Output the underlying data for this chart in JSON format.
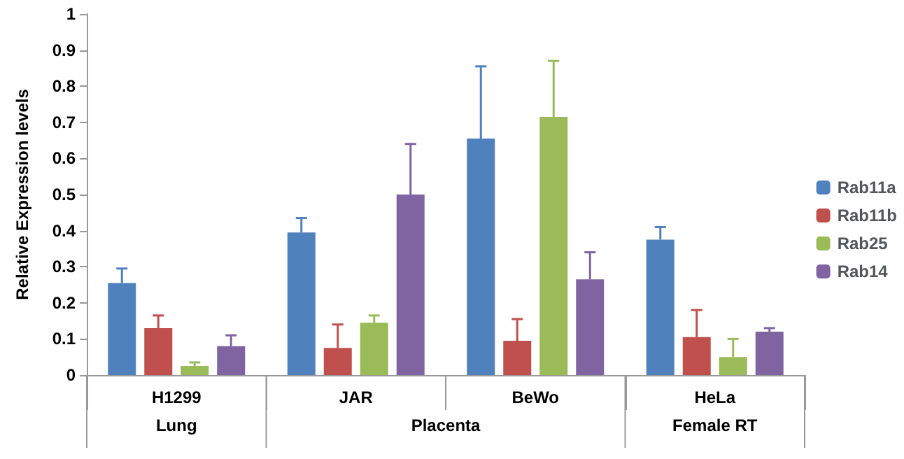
{
  "chart_data": {
    "type": "bar",
    "ylabel": "Relative Expression levels",
    "categories": [
      "H1299",
      "JAR",
      "BeWo",
      "HeLa"
    ],
    "series": [
      {
        "name": "Rab11a",
        "color": "#4f81bd",
        "values": [
          0.255,
          0.395,
          0.655,
          0.375
        ],
        "errors": [
          [
            0.255,
            0.295
          ],
          [
            0.395,
            0.435
          ],
          [
            0.655,
            0.855
          ],
          [
            0.375,
            0.41
          ]
        ]
      },
      {
        "name": "Rab11b",
        "color": "#c0504d",
        "values": [
          0.13,
          0.075,
          0.095,
          0.105
        ],
        "errors": [
          [
            0.13,
            0.165
          ],
          [
            0.075,
            0.14
          ],
          [
            0.095,
            0.155
          ],
          [
            0.105,
            0.18
          ]
        ]
      },
      {
        "name": "Rab25",
        "color": "#9bbb59",
        "values": [
          0.025,
          0.145,
          0.715,
          0.05
        ],
        "errors": [
          [
            0.025,
            0.035
          ],
          [
            0.145,
            0.165
          ],
          [
            0.715,
            0.87
          ],
          [
            0.05,
            0.1
          ]
        ]
      },
      {
        "name": "Rab14",
        "color": "#8064a2",
        "values": [
          0.08,
          0.5,
          0.265,
          0.12
        ],
        "errors": [
          [
            0.08,
            0.11
          ],
          [
            0.5,
            0.64
          ],
          [
            0.265,
            0.34
          ],
          [
            0.12,
            0.13
          ]
        ]
      }
    ],
    "ylim": [
      0,
      1
    ],
    "yticks": [
      0,
      0.1,
      0.2,
      0.3,
      0.4,
      0.5,
      0.6,
      0.7,
      0.8,
      0.9,
      1
    ],
    "annotations": [
      "Lung",
      "Placenta",
      "Female RT"
    ],
    "grid": false,
    "legend": "right"
  }
}
